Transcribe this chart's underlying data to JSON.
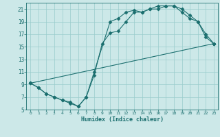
{
  "xlabel": "Humidex (Indice chaleur)",
  "bg_color": "#cce8e8",
  "grid_color": "#99cccc",
  "line_color": "#1a6e6e",
  "xlim": [
    -0.5,
    23.5
  ],
  "ylim": [
    5,
    22
  ],
  "xticks": [
    0,
    1,
    2,
    3,
    4,
    5,
    6,
    7,
    8,
    9,
    10,
    11,
    12,
    13,
    14,
    15,
    16,
    17,
    18,
    19,
    20,
    21,
    22,
    23
  ],
  "yticks": [
    5,
    7,
    9,
    11,
    13,
    15,
    17,
    19,
    21
  ],
  "line1_x": [
    0,
    1,
    2,
    3,
    4,
    5,
    6,
    7,
    8,
    10,
    11,
    12,
    13,
    14,
    15,
    16,
    17,
    18,
    19,
    20,
    21,
    22,
    23
  ],
  "line1_y": [
    9.2,
    8.5,
    7.5,
    7.0,
    6.5,
    6.2,
    5.5,
    7.0,
    11.0,
    19.0,
    19.5,
    20.5,
    20.8,
    20.5,
    21.0,
    21.5,
    21.5,
    21.5,
    20.5,
    19.5,
    19.0,
    17.0,
    15.5
  ],
  "line2_x": [
    0,
    1,
    2,
    3,
    4,
    5,
    6,
    7,
    8,
    9,
    10,
    11,
    12,
    13,
    14,
    15,
    16,
    17,
    18,
    19,
    20,
    21,
    22,
    23
  ],
  "line2_y": [
    9.2,
    8.5,
    7.5,
    7.0,
    6.5,
    6.0,
    5.5,
    7.0,
    10.5,
    15.5,
    17.2,
    17.5,
    19.0,
    20.5,
    20.5,
    21.0,
    21.0,
    21.5,
    21.5,
    21.0,
    20.0,
    19.0,
    16.5,
    15.5
  ],
  "line3_x": [
    0,
    23
  ],
  "line3_y": [
    9.2,
    15.5
  ]
}
